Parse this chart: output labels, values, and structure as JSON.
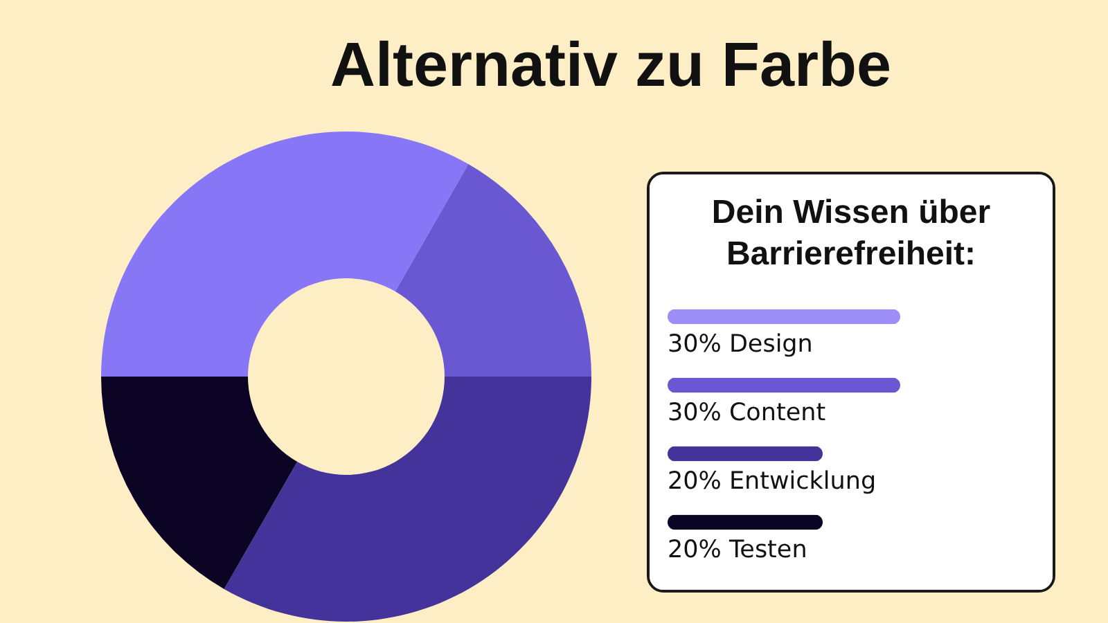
{
  "chart_data": [
    {
      "type": "donut",
      "title": "Alternativ zu Farbe",
      "categories": [
        null,
        null,
        null,
        null
      ],
      "values": [
        33.3,
        16.7,
        33.3,
        16.7
      ],
      "colors": [
        "#8776f6",
        "#6a58d3",
        "#43339a",
        "#0b0424"
      ]
    },
    {
      "type": "bar",
      "orientation": "horizontal",
      "title": "Dein Wissen über Barrierefreiheit:",
      "categories": [
        null,
        null,
        null,
        null
      ],
      "values": [
        30,
        30,
        20,
        20
      ],
      "value_labels": [
        "30% Design",
        "30% Content",
        "20% Entwicklung",
        "20% Testen"
      ],
      "colors": [
        "#9d8df6",
        "#6a58d2",
        "#43339a",
        "#0b0424"
      ],
      "tick_labels": false
    }
  ]
}
